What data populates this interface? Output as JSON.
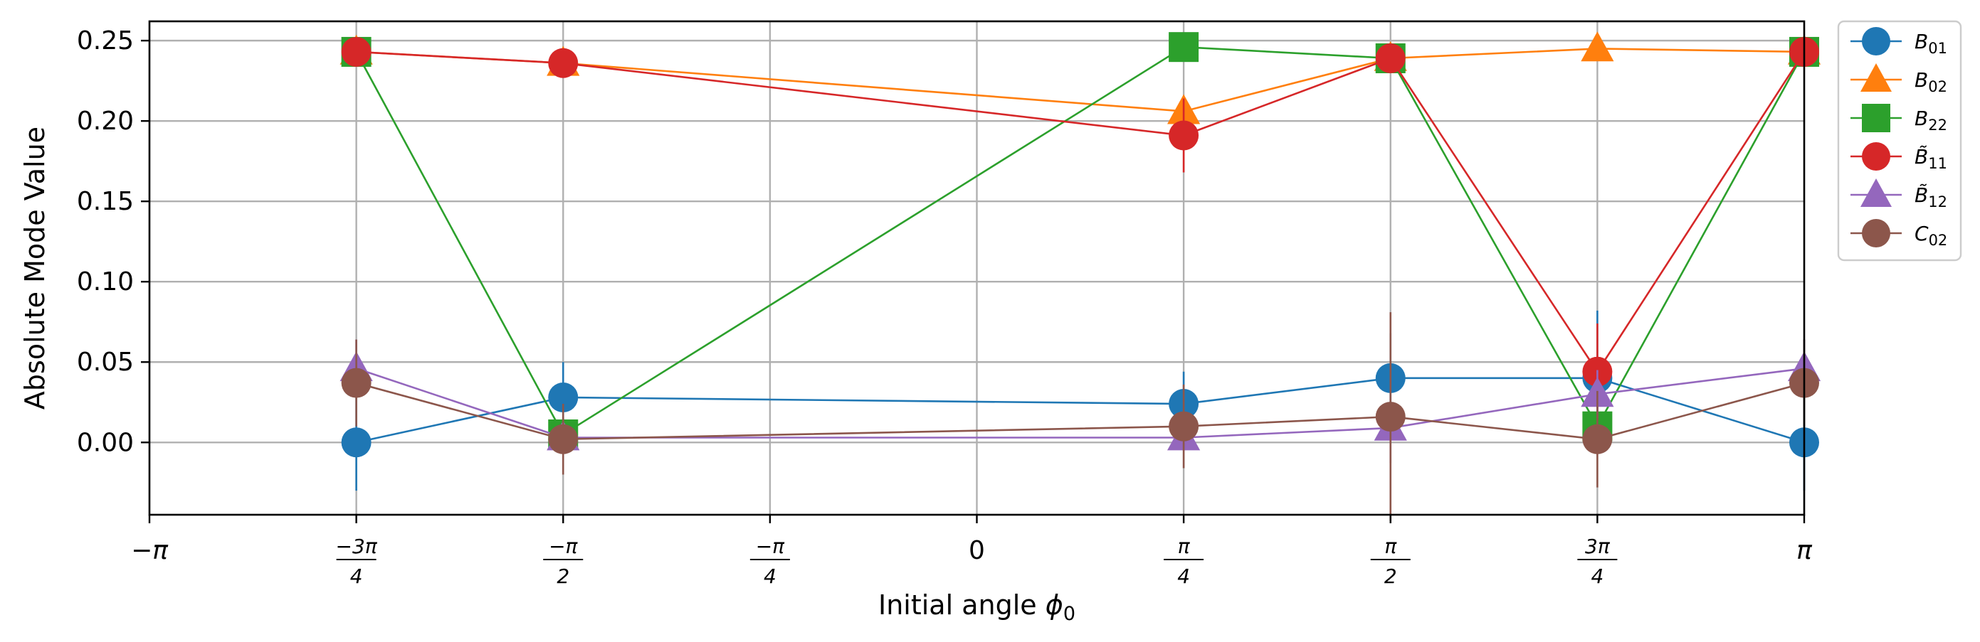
{
  "chart_data": {
    "type": "line",
    "xlabel": "Initial angle ϕ₀",
    "ylabel": "Absolute Mode Value",
    "xlim": [
      -3.14159,
      3.14159
    ],
    "ylim": [
      -0.045,
      0.262
    ],
    "grid": true,
    "legend_position": "outside-top-right",
    "x_ticks": [
      {
        "value": -3.14159,
        "label": "−π"
      },
      {
        "value": -2.35619,
        "num": "−3π",
        "den": "4"
      },
      {
        "value": -1.5708,
        "num": "−π",
        "den": "2"
      },
      {
        "value": -0.7854,
        "num": "−π",
        "den": "4"
      },
      {
        "value": 0,
        "label": "0"
      },
      {
        "value": 0.7854,
        "num": "π",
        "den": "4"
      },
      {
        "value": 1.5708,
        "num": "π",
        "den": "2"
      },
      {
        "value": 2.35619,
        "num": "3π",
        "den": "4"
      },
      {
        "value": 3.14159,
        "label": "π"
      }
    ],
    "y_ticks": [
      {
        "value": 0.0,
        "label": "0.00"
      },
      {
        "value": 0.05,
        "label": "0.05"
      },
      {
        "value": 0.1,
        "label": "0.10"
      },
      {
        "value": 0.15,
        "label": "0.15"
      },
      {
        "value": 0.2,
        "label": "0.20"
      },
      {
        "value": 0.25,
        "label": "0.25"
      }
    ],
    "x": [
      -2.35619,
      -1.5708,
      0.7854,
      1.5708,
      2.35619,
      3.14159
    ],
    "series": [
      {
        "name": "B",
        "sub": "01",
        "tilde": false,
        "marker": "circle",
        "color": "#1f77b4",
        "values": [
          0.0,
          0.028,
          0.024,
          0.04,
          0.04,
          0.0
        ],
        "errors": [
          0.03,
          0.022,
          0.02,
          0.028,
          0.042,
          0.03
        ]
      },
      {
        "name": "B",
        "sub": "02",
        "tilde": false,
        "marker": "triangle",
        "color": "#ff7f0e",
        "values": [
          0.243,
          0.236,
          0.206,
          0.239,
          0.245,
          0.243
        ],
        "errors": [
          0.006,
          0.006,
          0.006,
          0.006,
          0.006,
          0.006
        ]
      },
      {
        "name": "B",
        "sub": "22",
        "tilde": false,
        "marker": "square",
        "color": "#2ca02c",
        "values": [
          0.243,
          0.005,
          0.246,
          0.239,
          0.01,
          0.243
        ],
        "errors": [
          0.005,
          0.01,
          0.005,
          0.005,
          0.005,
          0.005
        ]
      },
      {
        "name": "B",
        "sub": "11",
        "tilde": true,
        "marker": "circle",
        "color": "#d62728",
        "values": [
          0.243,
          0.236,
          0.191,
          0.239,
          0.044,
          0.243
        ],
        "errors": [
          0.006,
          0.006,
          0.023,
          0.006,
          0.03,
          0.006
        ]
      },
      {
        "name": "B",
        "sub": "12",
        "tilde": true,
        "marker": "triangle",
        "color": "#9467bd",
        "values": [
          0.046,
          0.003,
          0.003,
          0.009,
          0.03,
          0.046
        ],
        "errors": [
          0.018,
          0.008,
          0.008,
          0.022,
          0.015,
          0.018
        ]
      },
      {
        "name": "C",
        "sub": "02",
        "tilde": false,
        "marker": "circle",
        "color": "#8c564b",
        "values": [
          0.037,
          0.002,
          0.01,
          0.016,
          0.002,
          0.037
        ],
        "errors": [
          0.027,
          0.022,
          0.026,
          0.065,
          0.03,
          0.027
        ]
      }
    ]
  }
}
